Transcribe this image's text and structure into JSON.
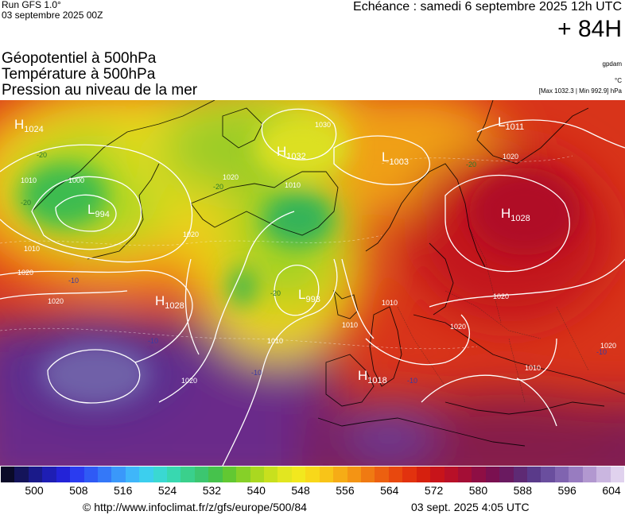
{
  "header": {
    "run": "Run GFS 1.0°",
    "run_date": "03 septembre 2025 00Z",
    "echeance": "Echéance : samedi 6 septembre 2025 12h UTC",
    "lead_time": "+ 84H"
  },
  "variables": [
    {
      "label": "Géopotentiel à 500hPa",
      "unit": "gpdam"
    },
    {
      "label": "Température à 500hPa",
      "unit": "°C"
    },
    {
      "label": "Pression au niveau de la mer",
      "unit": "[Max 1032.3 | Min 992.9] hPa"
    }
  ],
  "pressure_centers": [
    {
      "type": "H",
      "value": "1024"
    },
    {
      "type": "L",
      "value": "994"
    },
    {
      "type": "H",
      "value": "1032"
    },
    {
      "type": "L",
      "value": "1003"
    },
    {
      "type": "L",
      "value": "1011"
    },
    {
      "type": "H",
      "value": "1028"
    },
    {
      "type": "H",
      "value": "1028"
    },
    {
      "type": "L",
      "value": "993"
    },
    {
      "type": "H",
      "value": "1018"
    }
  ],
  "isobar_labels": [
    "1000",
    "1010",
    "1020",
    "1010",
    "1020",
    "1020",
    "1030",
    "1010",
    "1020",
    "1010",
    "1020",
    "1020",
    "1010",
    "1020",
    "1020",
    "1010",
    "1010",
    "1020"
  ],
  "temperature_labels": [
    "-20",
    "-20",
    "-20",
    "-20",
    "-20",
    "-10",
    "-10",
    "-10",
    "-10",
    "-10"
  ],
  "colorbar": {
    "colors": [
      "#0a0a28",
      "#14145a",
      "#1a1a8a",
      "#1e1eb4",
      "#2323d8",
      "#2a3cf0",
      "#2f5af5",
      "#3478f8",
      "#3a98fa",
      "#3fb6fa",
      "#3ccfee",
      "#3ad8d2",
      "#38d8b0",
      "#3ad08c",
      "#3cc670",
      "#46c24c",
      "#62c832",
      "#86d028",
      "#aad820",
      "#c8e01e",
      "#e2e620",
      "#f2e81e",
      "#f8d81a",
      "#f8c418",
      "#f6ac16",
      "#f49414",
      "#f07a12",
      "#ec6010",
      "#e8480e",
      "#e2320e",
      "#d6200e",
      "#c8141a",
      "#b81028",
      "#a40e36",
      "#8e0e44",
      "#7a1050",
      "#6a1a60",
      "#5e2a74",
      "#5a3a8a",
      "#6a4e9e",
      "#8064b0",
      "#987cc0",
      "#b298d0",
      "#cab6e0",
      "#e0d2ee"
    ],
    "tick_labels": [
      "500",
      "508",
      "516",
      "524",
      "532",
      "540",
      "548",
      "556",
      "564",
      "572",
      "580",
      "588",
      "596",
      "604"
    ]
  },
  "footer": {
    "copyright": "© http://www.infoclimat.fr/z/gfs/europe/500/84",
    "timestamp": "03 sept. 2025  4:05 UTC"
  }
}
